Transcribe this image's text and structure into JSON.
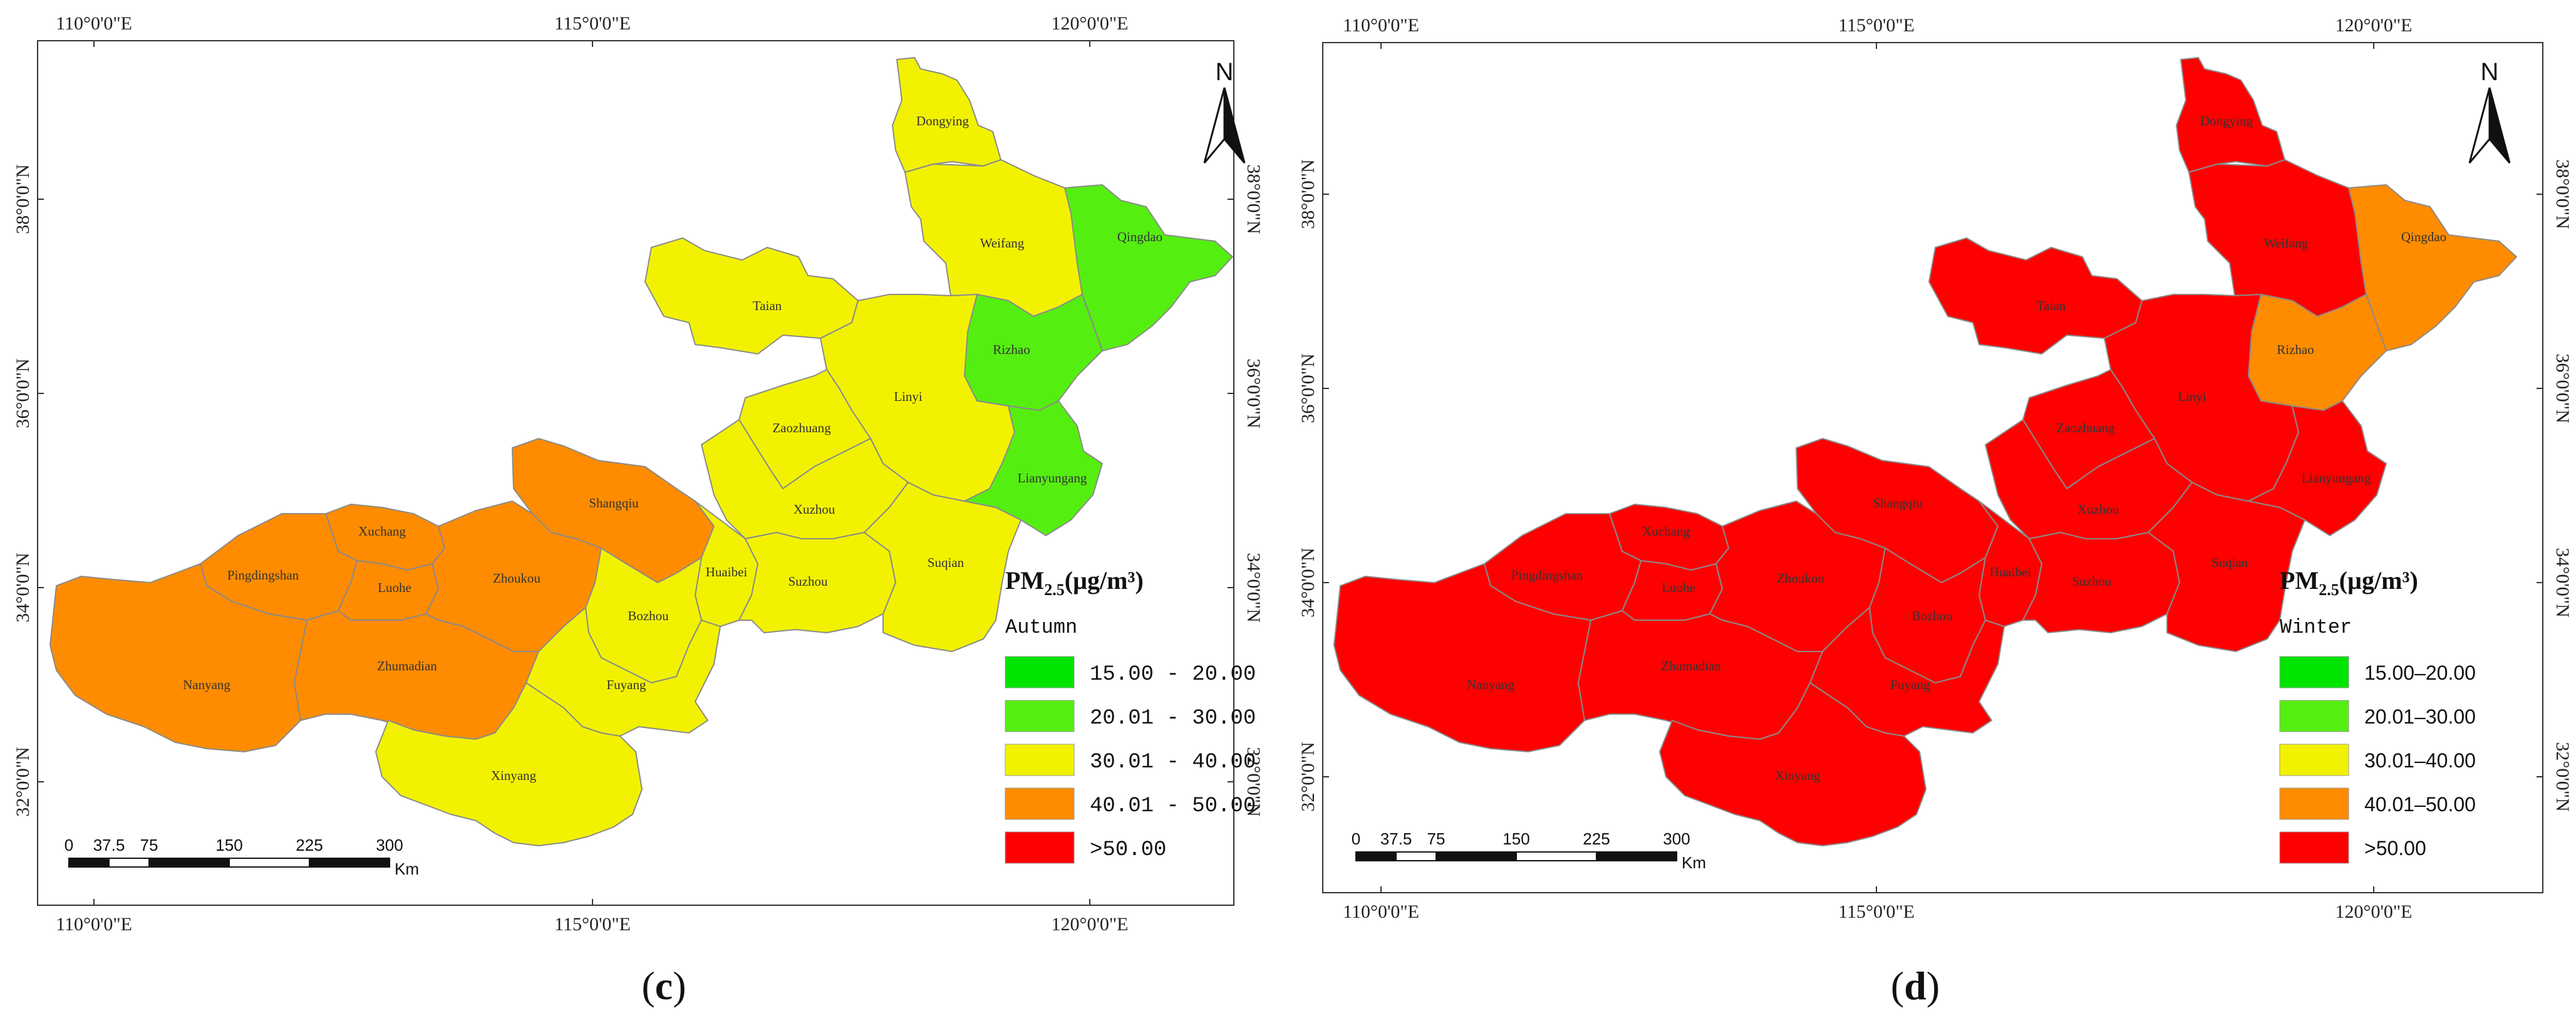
{
  "panels": [
    {
      "id": "c",
      "caption_letter": "c",
      "season": "Autumn",
      "legend_title_main": "PM",
      "legend_title_sub": "2.5",
      "legend_title_unit": "(µg/m³)",
      "legend_items": [
        {
          "label": "15.00  -  20.00",
          "color": "#00e400"
        },
        {
          "label": "20.01  -  30.00",
          "color": "#55ee11"
        },
        {
          "label": "30.01  -  40.00",
          "color": "#f2f200"
        },
        {
          "label": "40.01  -  50.00",
          "color": "#ff8c00"
        },
        {
          "label": ">50.00",
          "color": "#ff0000"
        }
      ],
      "top_lon_labels": [
        "110°0'0\"E",
        "115°0'0\"E",
        "120°0'0\"E"
      ],
      "bottom_lon_labels": [
        "110°0'0\"E",
        "115°0'0\"E",
        "120°0'0\"E"
      ],
      "left_lat_labels": [
        "38°0'0\"N",
        "36°0'0\"N",
        "34°0'0\"N",
        "32°0'0\"N"
      ],
      "right_lat_labels": [
        "38°0'0\"N",
        "36°0'0\"N",
        "34°0'0\"N",
        "32°0'0\"N"
      ],
      "scale_ticks": [
        "0",
        "37.5",
        "75",
        "150",
        "225",
        "300"
      ],
      "scale_unit": "Km",
      "north_label": "N",
      "cities": [
        {
          "name": "Dongying",
          "color": "#f2f200"
        },
        {
          "name": "Weifang",
          "color": "#f2f200"
        },
        {
          "name": "Qingdao",
          "color": "#55ee11"
        },
        {
          "name": "Taian",
          "color": "#f2f200"
        },
        {
          "name": "Rizhao",
          "color": "#55ee11"
        },
        {
          "name": "Linyi",
          "color": "#f2f200"
        },
        {
          "name": "Zaozhuang",
          "color": "#f2f200"
        },
        {
          "name": "Lianyungang",
          "color": "#55ee11"
        },
        {
          "name": "Xuzhou",
          "color": "#f2f200"
        },
        {
          "name": "Shangqiu",
          "color": "#ff8c00"
        },
        {
          "name": "Xuchang",
          "color": "#ff8c00"
        },
        {
          "name": "Pingdingshan",
          "color": "#ff8c00"
        },
        {
          "name": "Luohe",
          "color": "#ff8c00"
        },
        {
          "name": "Zhoukou",
          "color": "#ff8c00"
        },
        {
          "name": "Huaibei",
          "color": "#f2f200"
        },
        {
          "name": "Suzhou",
          "color": "#f2f200"
        },
        {
          "name": "Suqian",
          "color": "#f2f200"
        },
        {
          "name": "Bozhou",
          "color": "#f2f200"
        },
        {
          "name": "Nanyang",
          "color": "#ff8c00"
        },
        {
          "name": "Zhumadian",
          "color": "#ff8c00"
        },
        {
          "name": "Fuyang",
          "color": "#f2f200"
        },
        {
          "name": "Xinyang",
          "color": "#f2f200"
        }
      ]
    },
    {
      "id": "d",
      "caption_letter": "d",
      "season": "Winter",
      "legend_title_main": "PM",
      "legend_title_sub": "2.5",
      "legend_title_unit": "(µg/m³)",
      "legend_items": [
        {
          "label": "15.00–20.00",
          "color": "#00e400"
        },
        {
          "label": "20.01–30.00",
          "color": "#55ee11"
        },
        {
          "label": "30.01–40.00",
          "color": "#f2f200"
        },
        {
          "label": "40.01–50.00",
          "color": "#ff8c00"
        },
        {
          "label": ">50.00",
          "color": "#ff0000"
        }
      ],
      "top_lon_labels": [
        "110°0'0\"E",
        "115°0'0\"E",
        "120°0'0\"E"
      ],
      "bottom_lon_labels": [
        "110°0'0\"E",
        "115°0'0\"E",
        "120°0'0\"E"
      ],
      "left_lat_labels": [
        "38°0'0\"N",
        "36°0'0\"N",
        "34°0'0\"N",
        "32°0'0\"N"
      ],
      "right_lat_labels": [
        "38°0'0\"N",
        "36°0'0\"N",
        "34°0'0\"N",
        "32°0'0\"N"
      ],
      "scale_ticks": [
        "0",
        "37.5",
        "75",
        "150",
        "225",
        "300"
      ],
      "scale_unit": "Km",
      "north_label": "N",
      "cities": [
        {
          "name": "Dongying",
          "color": "#ff0000"
        },
        {
          "name": "Weifang",
          "color": "#ff0000"
        },
        {
          "name": "Qingdao",
          "color": "#ff8c00"
        },
        {
          "name": "Taian",
          "color": "#ff0000"
        },
        {
          "name": "Rizhao",
          "color": "#ff8c00"
        },
        {
          "name": "Linyi",
          "color": "#ff0000"
        },
        {
          "name": "Zaozhuang",
          "color": "#ff0000"
        },
        {
          "name": "Lianyungang",
          "color": "#ff0000"
        },
        {
          "name": "Xuzhou",
          "color": "#ff0000"
        },
        {
          "name": "Shangqiu",
          "color": "#ff0000"
        },
        {
          "name": "Xuchang",
          "color": "#ff0000"
        },
        {
          "name": "Pingdingshan",
          "color": "#ff0000"
        },
        {
          "name": "Luohe",
          "color": "#ff0000"
        },
        {
          "name": "Zhoukou",
          "color": "#ff0000"
        },
        {
          "name": "Huaibei",
          "color": "#ff0000"
        },
        {
          "name": "Suzhou",
          "color": "#ff0000"
        },
        {
          "name": "Suqian",
          "color": "#ff0000"
        },
        {
          "name": "Bozhou",
          "color": "#ff0000"
        },
        {
          "name": "Nanyang",
          "color": "#ff0000"
        },
        {
          "name": "Zhumadian",
          "color": "#ff0000"
        },
        {
          "name": "Fuyang",
          "color": "#ff0000"
        },
        {
          "name": "Xinyang",
          "color": "#ff0000"
        }
      ]
    }
  ]
}
